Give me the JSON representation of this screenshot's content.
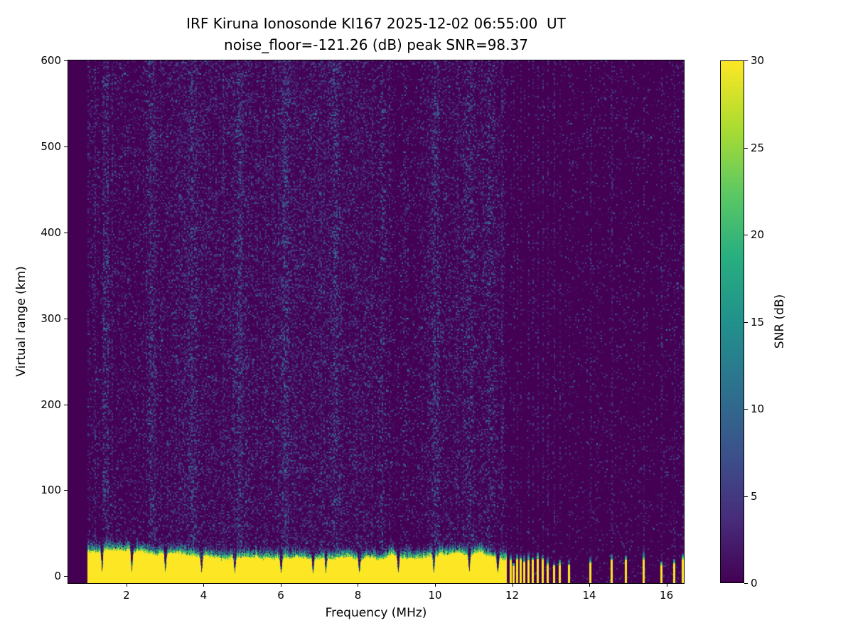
{
  "chart_data": {
    "type": "heatmap",
    "title": "IRF Kiruna Ionosonde KI167 2025-12-02 06:55:00  UT",
    "subtitle": "noise_floor=-121.26 (dB) peak SNR=98.37",
    "xlabel": "Frequency (MHz)",
    "ylabel": "Virtual range (km)",
    "x_ticks": [
      2,
      4,
      6,
      8,
      10,
      12,
      14,
      16
    ],
    "y_ticks": [
      0,
      100,
      200,
      300,
      400,
      500,
      600
    ],
    "x_range": [
      0.49,
      16.45
    ],
    "y_range": [
      -8,
      600
    ],
    "colorbar": {
      "label": "SNR (dB)",
      "min": 0,
      "max": 30,
      "ticks": [
        0,
        5,
        10,
        15,
        20,
        25,
        30
      ]
    },
    "noise_floor_db": -121.26,
    "peak_snr_db": 98.37,
    "colormap": "viridis",
    "colormap_stops": [
      {
        "t": 0.0,
        "color": "#440154"
      },
      {
        "t": 0.125,
        "color": "#472d7b"
      },
      {
        "t": 0.25,
        "color": "#3b528b"
      },
      {
        "t": 0.375,
        "color": "#2c728e"
      },
      {
        "t": 0.5,
        "color": "#21918c"
      },
      {
        "t": 0.625,
        "color": "#28ae80"
      },
      {
        "t": 0.75,
        "color": "#5ec962"
      },
      {
        "t": 0.875,
        "color": "#addc30"
      },
      {
        "t": 1.0,
        "color": "#fde725"
      }
    ],
    "ionogram": {
      "data_freq_start": 1.0,
      "continuous_sweep_end": 11.85,
      "ground_echo_value_db": 30,
      "ground_echo_top_km": [
        21,
        33
      ],
      "green_fringe_km": [
        7,
        16
      ],
      "stripe_ground_top_km": [
        13,
        22
      ],
      "notch_frequencies_mhz": [
        1.36,
        2.13,
        3.0,
        3.94,
        4.8,
        6.0,
        6.83,
        7.16,
        8.03,
        9.04,
        9.96,
        10.88,
        11.62
      ],
      "noisy_column_frequencies_mhz": [
        1.45,
        2.6,
        3.7,
        4.9,
        6.1,
        7.4,
        8.6,
        9.2,
        10.0,
        10.9,
        11.4
      ],
      "stripe_frequencies_mhz": [
        11.95,
        12.03,
        12.12,
        12.21,
        12.31,
        12.42,
        12.53,
        12.65,
        12.78,
        12.92,
        13.07,
        13.23,
        13.46,
        14.02,
        14.57,
        14.94,
        15.4,
        15.86,
        16.19,
        16.41
      ]
    }
  }
}
